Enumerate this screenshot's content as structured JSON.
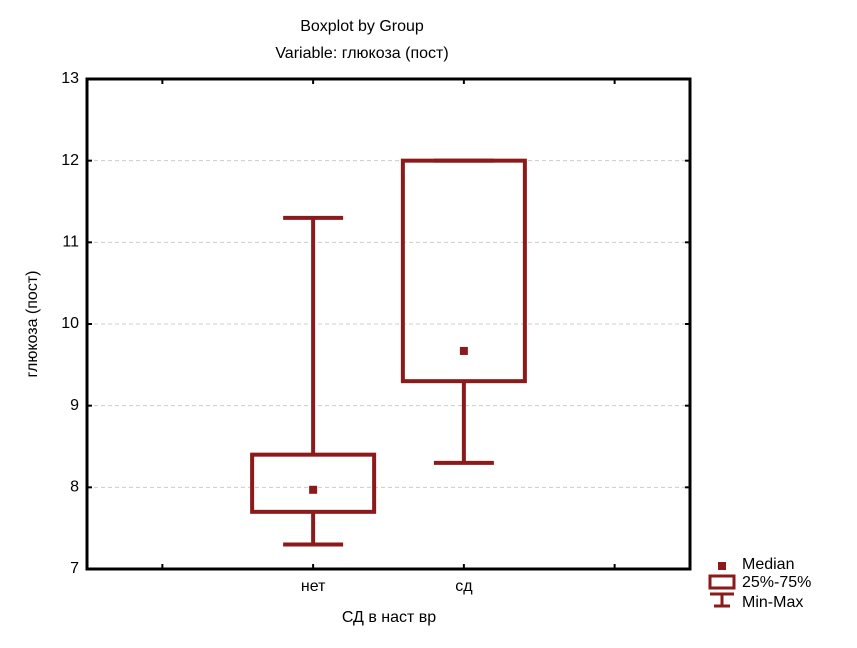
{
  "chart_data": {
    "type": "boxplot",
    "title": "Boxplot by Group",
    "subtitle": "Variable: глюкоза (пост)",
    "x_label": "СД в наст вр",
    "y_label": "глюкоза (пост)",
    "categories": [
      null,
      "нет",
      "сд",
      null
    ],
    "min": [
      null,
      7.3,
      8.3,
      null
    ],
    "q1": [
      null,
      7.7,
      9.3,
      null
    ],
    "median": [
      null,
      7.97,
      9.67,
      null
    ],
    "q3": [
      null,
      8.4,
      12,
      null
    ],
    "max": [
      null,
      11.3,
      12,
      null
    ],
    "color": "#8b1a1a",
    "ylim": [
      7,
      13
    ],
    "yticks": [
      7,
      8,
      9,
      10,
      11,
      12,
      13
    ],
    "grid": true,
    "legend": [
      "Median",
      "25%-75%",
      "Min-Max"
    ]
  }
}
